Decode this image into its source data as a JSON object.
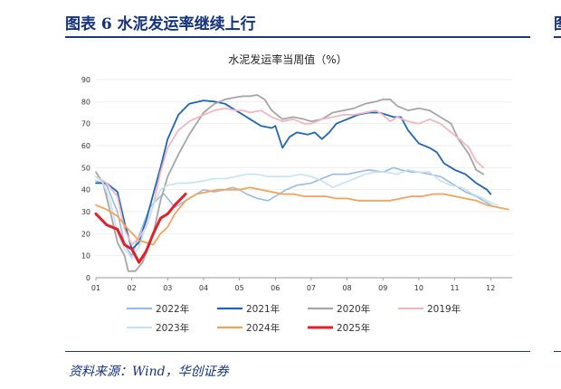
{
  "header": {
    "title": "图表 6   水泥发运率继续上行",
    "edge_char": "图"
  },
  "footer": {
    "source": "资料来源：Wind，华创证券"
  },
  "chart_data": {
    "type": "line",
    "title": "水泥发运率当周值（%）",
    "xlabel": "",
    "ylabel": "",
    "xlim": [
      1,
      12.6
    ],
    "ylim": [
      0,
      90
    ],
    "x_ticks": [
      "01",
      "02",
      "03",
      "04",
      "05",
      "06",
      "07",
      "08",
      "09",
      "10",
      "11",
      "12"
    ],
    "y_ticks": [
      0,
      10,
      20,
      30,
      40,
      50,
      60,
      70,
      80,
      90
    ],
    "legend_position": "bottom",
    "series": [
      {
        "name": "2022年",
        "color": "#9dbbe0",
        "width": 1.6,
        "points": [
          [
            1,
            44
          ],
          [
            1.3,
            42
          ],
          [
            1.6,
            30
          ],
          [
            1.8,
            15
          ],
          [
            2.0,
            10
          ],
          [
            2.2,
            19
          ],
          [
            2.5,
            32
          ],
          [
            2.8,
            37
          ],
          [
            2.9,
            38
          ],
          [
            3.0,
            36
          ],
          [
            3.2,
            32
          ],
          [
            3.5,
            35
          ],
          [
            3.8,
            38
          ],
          [
            4.0,
            40
          ],
          [
            4.3,
            39
          ],
          [
            4.6,
            40
          ],
          [
            4.8,
            41
          ],
          [
            5.0,
            40
          ],
          [
            5.2,
            38
          ],
          [
            5.5,
            36
          ],
          [
            5.8,
            35
          ],
          [
            6.0,
            37
          ],
          [
            6.3,
            40
          ],
          [
            6.6,
            42
          ],
          [
            7.0,
            43
          ],
          [
            7.3,
            45
          ],
          [
            7.6,
            47
          ],
          [
            8.0,
            47
          ],
          [
            8.3,
            48
          ],
          [
            8.6,
            49
          ],
          [
            9.0,
            48
          ],
          [
            9.3,
            50
          ],
          [
            9.5,
            49
          ],
          [
            9.8,
            48
          ],
          [
            10.0,
            48
          ],
          [
            10.3,
            47
          ],
          [
            10.6,
            46
          ],
          [
            11.0,
            42
          ],
          [
            11.3,
            39
          ],
          [
            11.6,
            37
          ],
          [
            12.0,
            33
          ]
        ]
      },
      {
        "name": "2021年",
        "color": "#1f66b3",
        "width": 1.8,
        "points": [
          [
            1,
            43
          ],
          [
            1.3,
            43
          ],
          [
            1.6,
            39
          ],
          [
            1.8,
            25
          ],
          [
            2.0,
            13
          ],
          [
            2.2,
            16
          ],
          [
            2.4,
            26
          ],
          [
            2.6,
            38
          ],
          [
            2.8,
            50
          ],
          [
            3.0,
            63
          ],
          [
            3.3,
            74
          ],
          [
            3.6,
            79
          ],
          [
            4.0,
            80.5
          ],
          [
            4.3,
            80
          ],
          [
            4.6,
            79
          ],
          [
            4.9,
            76
          ],
          [
            5.1,
            74
          ],
          [
            5.3,
            72
          ],
          [
            5.6,
            69
          ],
          [
            5.9,
            68
          ],
          [
            6.0,
            69
          ],
          [
            6.2,
            59
          ],
          [
            6.4,
            64
          ],
          [
            6.6,
            66
          ],
          [
            6.9,
            65
          ],
          [
            7.1,
            66
          ],
          [
            7.3,
            63
          ],
          [
            7.5,
            66
          ],
          [
            7.7,
            70
          ],
          [
            8.0,
            72
          ],
          [
            8.3,
            74
          ],
          [
            8.6,
            75
          ],
          [
            8.9,
            75
          ],
          [
            9.1,
            74
          ],
          [
            9.3,
            73
          ],
          [
            9.5,
            73
          ],
          [
            9.7,
            67
          ],
          [
            10.0,
            61
          ],
          [
            10.3,
            59
          ],
          [
            10.5,
            57
          ],
          [
            10.7,
            52
          ],
          [
            11.0,
            49
          ],
          [
            11.3,
            47
          ],
          [
            11.6,
            43
          ],
          [
            11.9,
            40
          ],
          [
            12.0,
            38
          ]
        ]
      },
      {
        "name": "2020年",
        "color": "#a6a6a6",
        "width": 1.8,
        "points": [
          [
            1,
            48
          ],
          [
            1.2,
            43
          ],
          [
            1.4,
            30
          ],
          [
            1.6,
            16
          ],
          [
            1.8,
            10
          ],
          [
            1.9,
            3
          ],
          [
            2.1,
            3
          ],
          [
            2.3,
            7
          ],
          [
            2.6,
            20
          ],
          [
            2.8,
            35
          ],
          [
            3.0,
            46
          ],
          [
            3.3,
            56
          ],
          [
            3.6,
            65
          ],
          [
            4.0,
            75
          ],
          [
            4.3,
            79
          ],
          [
            4.6,
            81
          ],
          [
            4.9,
            82
          ],
          [
            5.1,
            82.5
          ],
          [
            5.3,
            82.5
          ],
          [
            5.5,
            83
          ],
          [
            5.7,
            81
          ],
          [
            5.9,
            76
          ],
          [
            6.2,
            72
          ],
          [
            6.5,
            73
          ],
          [
            6.8,
            72
          ],
          [
            7.0,
            71
          ],
          [
            7.3,
            72
          ],
          [
            7.6,
            75
          ],
          [
            7.9,
            76
          ],
          [
            8.2,
            77
          ],
          [
            8.5,
            79
          ],
          [
            8.8,
            80
          ],
          [
            9.0,
            81
          ],
          [
            9.2,
            81
          ],
          [
            9.4,
            78
          ],
          [
            9.7,
            76
          ],
          [
            10.0,
            77
          ],
          [
            10.3,
            76
          ],
          [
            10.6,
            73
          ],
          [
            10.9,
            70
          ],
          [
            11.1,
            63
          ],
          [
            11.4,
            56
          ],
          [
            11.6,
            49
          ],
          [
            11.8,
            47
          ]
        ]
      },
      {
        "name": "2019年",
        "color": "#efb8c0",
        "width": 1.8,
        "points": [
          [
            1,
            46
          ],
          [
            1.3,
            43
          ],
          [
            1.6,
            37
          ],
          [
            1.8,
            22
          ],
          [
            2.0,
            15
          ],
          [
            2.2,
            18
          ],
          [
            2.4,
            23
          ],
          [
            2.6,
            33
          ],
          [
            2.8,
            48
          ],
          [
            3.0,
            59
          ],
          [
            3.3,
            67
          ],
          [
            3.6,
            71
          ],
          [
            4.0,
            74
          ],
          [
            4.3,
            76
          ],
          [
            4.6,
            77
          ],
          [
            4.9,
            76
          ],
          [
            5.1,
            76
          ],
          [
            5.3,
            75
          ],
          [
            5.6,
            76
          ],
          [
            5.9,
            73
          ],
          [
            6.2,
            71
          ],
          [
            6.5,
            72
          ],
          [
            6.8,
            70
          ],
          [
            7.0,
            70
          ],
          [
            7.3,
            72
          ],
          [
            7.6,
            73
          ],
          [
            7.9,
            74
          ],
          [
            8.2,
            74
          ],
          [
            8.5,
            75
          ],
          [
            8.8,
            76
          ],
          [
            9.0,
            74
          ],
          [
            9.2,
            71
          ],
          [
            9.4,
            73
          ],
          [
            9.7,
            71
          ],
          [
            10.0,
            70
          ],
          [
            10.3,
            72
          ],
          [
            10.6,
            70
          ],
          [
            10.9,
            66
          ],
          [
            11.2,
            62
          ],
          [
            11.4,
            59
          ],
          [
            11.6,
            53
          ],
          [
            11.8,
            50
          ]
        ]
      },
      {
        "name": "2023年",
        "color": "#c5e3ef",
        "width": 1.6,
        "points": [
          [
            1,
            46
          ],
          [
            1.2,
            43
          ],
          [
            1.4,
            35
          ],
          [
            1.6,
            20
          ],
          [
            1.8,
            13
          ],
          [
            2.0,
            9
          ],
          [
            2.2,
            14
          ],
          [
            2.4,
            24
          ],
          [
            2.6,
            33
          ],
          [
            2.8,
            40
          ],
          [
            3.0,
            42
          ],
          [
            3.3,
            43
          ],
          [
            3.6,
            43
          ],
          [
            4.0,
            44
          ],
          [
            4.3,
            45
          ],
          [
            4.6,
            45
          ],
          [
            4.9,
            46
          ],
          [
            5.2,
            47
          ],
          [
            5.5,
            47
          ],
          [
            5.8,
            46
          ],
          [
            6.1,
            46
          ],
          [
            6.4,
            46
          ],
          [
            6.7,
            47
          ],
          [
            7.0,
            46
          ],
          [
            7.3,
            44
          ],
          [
            7.6,
            41
          ],
          [
            7.9,
            43
          ],
          [
            8.2,
            45
          ],
          [
            8.5,
            47
          ],
          [
            8.8,
            48
          ],
          [
            9.1,
            48
          ],
          [
            9.4,
            47
          ],
          [
            9.7,
            49
          ],
          [
            10.0,
            48
          ],
          [
            10.3,
            48
          ],
          [
            10.6,
            44
          ],
          [
            10.9,
            42
          ],
          [
            11.2,
            41
          ],
          [
            11.5,
            38
          ],
          [
            11.8,
            36
          ],
          [
            12.0,
            34
          ],
          [
            12.2,
            33
          ]
        ]
      },
      {
        "name": "2024年",
        "color": "#f0a35c",
        "width": 1.8,
        "points": [
          [
            1,
            33
          ],
          [
            1.3,
            31
          ],
          [
            1.6,
            28
          ],
          [
            1.9,
            22
          ],
          [
            2.2,
            17
          ],
          [
            2.4,
            16
          ],
          [
            2.6,
            15
          ],
          [
            2.8,
            20
          ],
          [
            3.0,
            23
          ],
          [
            3.2,
            29
          ],
          [
            3.5,
            35
          ],
          [
            3.8,
            38
          ],
          [
            4.1,
            39
          ],
          [
            4.4,
            40
          ],
          [
            4.7,
            40
          ],
          [
            5.0,
            40
          ],
          [
            5.3,
            41
          ],
          [
            5.6,
            40
          ],
          [
            5.9,
            39
          ],
          [
            6.2,
            38
          ],
          [
            6.5,
            38
          ],
          [
            6.8,
            37
          ],
          [
            7.1,
            37
          ],
          [
            7.4,
            37
          ],
          [
            7.7,
            36
          ],
          [
            8.0,
            36
          ],
          [
            8.3,
            35
          ],
          [
            8.6,
            35
          ],
          [
            8.9,
            35
          ],
          [
            9.2,
            35
          ],
          [
            9.5,
            36
          ],
          [
            9.8,
            37
          ],
          [
            10.1,
            37
          ],
          [
            10.4,
            38
          ],
          [
            10.7,
            38
          ],
          [
            11.0,
            37
          ],
          [
            11.3,
            36
          ],
          [
            11.6,
            35
          ],
          [
            11.9,
            33
          ],
          [
            12.2,
            32
          ],
          [
            12.5,
            31
          ]
        ]
      },
      {
        "name": "2025年",
        "color": "#e0202a",
        "width": 3.0,
        "points": [
          [
            1,
            29
          ],
          [
            1.3,
            24
          ],
          [
            1.6,
            22
          ],
          [
            1.8,
            15
          ],
          [
            2.0,
            13
          ],
          [
            2.2,
            7
          ],
          [
            2.4,
            12
          ],
          [
            2.6,
            20
          ],
          [
            2.8,
            27
          ],
          [
            3.0,
            29
          ],
          [
            3.2,
            33
          ],
          [
            3.5,
            38
          ]
        ]
      }
    ]
  }
}
